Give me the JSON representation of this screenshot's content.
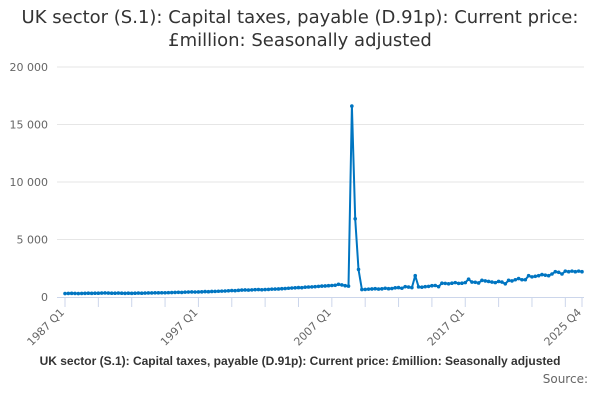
{
  "title": "UK sector (S.1): Capital taxes, payable (D.91p): Current price: £million: Seasonally adjusted",
  "caption": "UK sector (S.1): Capital taxes, payable (D.91p): Current price: £million: Seasonally adjusted",
  "source_label": "Source:",
  "chart_data": {
    "type": "line",
    "title": "UK sector (S.1): Capital taxes, payable (D.91p): Current price: £million: Seasonally adjusted",
    "xlabel": "",
    "ylabel": "",
    "x_start": "1987 Q1",
    "x_end": "2025 Q4",
    "frequency": "quarterly",
    "x_tick_labels": [
      "1987 Q1",
      "1997 Q1",
      "2007 Q1",
      "2017 Q1",
      "2025 Q4"
    ],
    "y_ticks": [
      0,
      5000,
      10000,
      15000,
      20000
    ],
    "y_tick_labels": [
      "0",
      "5 000",
      "10 000",
      "15 000",
      "20 000"
    ],
    "ylim": [
      0,
      20000
    ],
    "grid": true,
    "markers": true,
    "color": "#0075c1",
    "values": [
      300,
      310,
      320,
      310,
      300,
      310,
      320,
      330,
      320,
      330,
      330,
      340,
      350,
      340,
      330,
      330,
      340,
      330,
      320,
      330,
      320,
      330,
      340,
      330,
      340,
      350,
      350,
      360,
      360,
      370,
      370,
      380,
      390,
      400,
      410,
      400,
      420,
      430,
      440,
      430,
      440,
      450,
      470,
      460,
      480,
      490,
      500,
      510,
      520,
      540,
      560,
      550,
      580,
      600,
      610,
      600,
      620,
      640,
      650,
      630,
      650,
      660,
      680,
      690,
      700,
      720,
      740,
      760,
      780,
      800,
      820,
      810,
      850,
      870,
      880,
      900,
      920,
      950,
      960,
      980,
      1000,
      1020,
      1100,
      1050,
      980,
      950,
      16600,
      6800,
      2400,
      650,
      660,
      680,
      700,
      720,
      690,
      710,
      760,
      720,
      740,
      800,
      820,
      760,
      900,
      860,
      820,
      1850,
      880,
      850,
      900,
      920,
      980,
      1000,
      900,
      1200,
      1180,
      1150,
      1200,
      1250,
      1180,
      1200,
      1250,
      1550,
      1300,
      1280,
      1220,
      1450,
      1400,
      1350,
      1300,
      1250,
      1350,
      1300,
      1150,
      1450,
      1400,
      1500,
      1600,
      1500,
      1500,
      1850,
      1750,
      1800,
      1850,
      1950,
      1900,
      1850,
      2000,
      2200,
      2150,
      2000,
      2250,
      2200,
      2250,
      2200,
      2250,
      2200
    ]
  }
}
